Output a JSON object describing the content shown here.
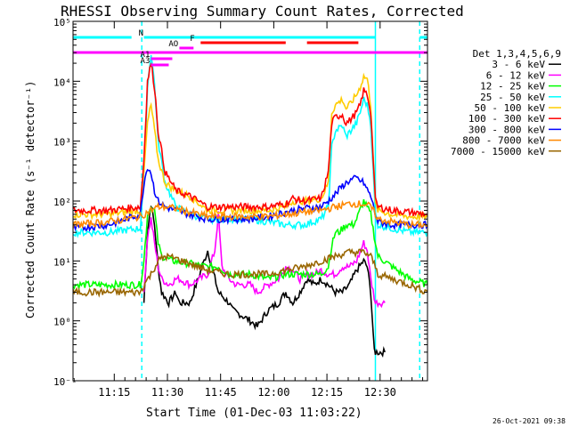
{
  "chart_data": {
    "type": "line",
    "title": "RHESSI Observing Summary Count Rates, Corrected",
    "xlabel": "Start Time (01-Dec-03 11:03:22)",
    "ylabel": "Corrected Count Rate (s⁻¹ detector⁻¹)",
    "yscale": "log",
    "ylim": [
      0.1,
      100000
    ],
    "xlim_minutes": [
      7,
      38.7
    ],
    "ytick_labels": [
      "10⁻¹",
      "10⁰",
      "10¹",
      "10²",
      "10³",
      "10⁴",
      "10⁵"
    ],
    "xtick_labels": [
      "11:15",
      "11:30",
      "11:45",
      "12:00",
      "12:15",
      "12:30"
    ],
    "x_ticks": [
      11.63,
      26.63,
      41.63,
      56.63,
      71.63,
      86.63
    ],
    "timestamp": "26-Oct-2021 09:38",
    "legend_title": "Det 1,3,4,5,6,9",
    "legend_position": "right",
    "vlines": {
      "cyan_dashed": [
        19.4,
        97.8
      ],
      "cyan_solid": [
        85.3
      ]
    },
    "flags": [
      {
        "label": "N",
        "color": "#00ffff",
        "segments": [
          [
            -999,
            16.5
          ],
          [
            20.0,
            85.3
          ],
          [
            97.8,
            999
          ]
        ],
        "y": 42
      },
      {
        "label": "F",
        "color": "#ff0000",
        "segments": [
          [
            36.0,
            60.0
          ],
          [
            66.0,
            80.5
          ]
        ],
        "y": 48
      },
      {
        "label": "AO",
        "color": "#ff00ff",
        "segments": [
          [
            30.0,
            34.0
          ]
        ],
        "y": 54
      },
      {
        "label": "",
        "color": "#ff00ff",
        "segments": [
          [
            -999,
            999
          ]
        ],
        "y": 59
      },
      {
        "label": "A1",
        "color": "#ff00ff",
        "segments": [
          [
            22.0,
            28.0
          ]
        ],
        "y": 66
      },
      {
        "label": "A3",
        "color": "#ff00ff",
        "segments": [
          [
            22.0,
            27.0
          ]
        ],
        "y": 73
      }
    ],
    "series": [
      {
        "name": "3 - 6 keV",
        "color": "#000000",
        "x": [
          0,
          19,
          20,
          21,
          22,
          23,
          24,
          25,
          27,
          29,
          30,
          33,
          38,
          41,
          44,
          45,
          47,
          50,
          52,
          55,
          58,
          60,
          62,
          64,
          66,
          68,
          70,
          72,
          74,
          76,
          78,
          80,
          82,
          83,
          84,
          85,
          85.3,
          86,
          87,
          88
        ],
        "y": [
          null,
          null,
          2,
          30,
          90,
          40,
          8,
          3,
          2,
          3,
          2,
          2,
          15,
          3,
          2,
          1.5,
          1.3,
          1,
          0.8,
          1.5,
          2,
          3,
          2,
          3,
          5,
          4,
          5,
          4,
          3,
          3,
          4,
          7,
          10,
          8,
          3,
          0.3,
          0.3,
          0.3,
          0.3,
          0.3
        ]
      },
      {
        "name": "6 - 12 keV",
        "color": "#ff00ff",
        "x": [
          19,
          20,
          21,
          22,
          23,
          24,
          25,
          27,
          29,
          30,
          33,
          38,
          40,
          41,
          42,
          44,
          46,
          50,
          52,
          55,
          58,
          60,
          62,
          64,
          66,
          68,
          70,
          72,
          74,
          76,
          78,
          80,
          82,
          83,
          84,
          85.3,
          86,
          87,
          88
        ],
        "y": [
          null,
          3,
          25,
          50,
          20,
          8,
          5,
          4,
          5,
          5,
          4,
          6,
          15,
          60,
          8,
          5,
          4,
          4,
          3,
          4,
          5,
          8,
          7,
          5,
          6,
          6,
          7,
          6,
          6,
          8,
          8,
          10,
          20,
          15,
          5,
          2,
          2,
          2,
          2
        ]
      },
      {
        "name": "12 - 25 keV",
        "color": "#00ff00",
        "x": [
          0,
          10,
          19,
          20,
          21,
          22,
          23,
          24,
          25,
          28,
          33,
          38,
          41,
          44,
          50,
          55,
          60,
          65,
          70,
          72,
          73,
          74,
          75,
          77,
          78,
          79,
          80,
          82,
          84,
          85.3,
          86,
          90,
          95,
          100
        ],
        "y": [
          4,
          4,
          4,
          10,
          60,
          80,
          70,
          20,
          12,
          10,
          9,
          8,
          8,
          6,
          6,
          5,
          6,
          6,
          6,
          8,
          18,
          30,
          30,
          40,
          40,
          40,
          50,
          100,
          60,
          20,
          12,
          8,
          5,
          4
        ]
      },
      {
        "name": "25 - 50 keV",
        "color": "#00ffff",
        "x": [
          0,
          10,
          19,
          20,
          21,
          22,
          23,
          24,
          26,
          29,
          33,
          38,
          44,
          50,
          55,
          60,
          62,
          65,
          70,
          72,
          73,
          74,
          76,
          77,
          78,
          80,
          81,
          82,
          83,
          84,
          85.3,
          86,
          90,
          95,
          100
        ],
        "y": [
          30,
          30,
          35,
          300,
          8000,
          30000,
          9000,
          1000,
          200,
          80,
          60,
          50,
          50,
          50,
          45,
          40,
          40,
          40,
          50,
          80,
          800,
          1500,
          1800,
          1200,
          1400,
          2000,
          3000,
          5000,
          4000,
          2000,
          60,
          40,
          35,
          30,
          30
        ]
      },
      {
        "name": "50 - 100 keV",
        "color": "#ffcc00",
        "x": [
          0,
          10,
          19,
          20,
          21,
          22,
          23,
          24,
          26,
          29,
          33,
          38,
          44,
          50,
          55,
          60,
          62,
          65,
          70,
          72,
          73,
          74,
          76,
          77,
          78,
          80,
          81,
          82,
          83,
          84,
          85.3,
          86,
          90,
          95,
          100
        ],
        "y": [
          60,
          60,
          70,
          300,
          2000,
          4000,
          1500,
          500,
          200,
          150,
          120,
          70,
          70,
          70,
          70,
          80,
          100,
          100,
          110,
          200,
          3000,
          4000,
          5000,
          3500,
          4000,
          6000,
          8000,
          12000,
          11000,
          4000,
          90,
          70,
          60,
          55,
          55
        ]
      },
      {
        "name": "100 - 300 keV",
        "color": "#ff0000",
        "x": [
          0,
          10,
          19,
          20,
          21,
          22,
          23,
          24,
          26,
          29,
          33,
          38,
          44,
          50,
          55,
          60,
          62,
          65,
          70,
          72,
          73,
          74,
          76,
          77,
          78,
          80,
          81,
          82,
          83,
          84,
          85.3,
          86,
          90,
          95,
          100
        ],
        "y": [
          70,
          70,
          80,
          500,
          10000,
          20000,
          8000,
          1500,
          300,
          150,
          120,
          80,
          80,
          80,
          80,
          90,
          110,
          100,
          110,
          300,
          2000,
          2500,
          2800,
          2000,
          2200,
          3000,
          4000,
          7000,
          6000,
          3000,
          100,
          80,
          70,
          65,
          60
        ]
      },
      {
        "name": "300 - 800 keV",
        "color": "#0000ff",
        "x": [
          0,
          10,
          19,
          20,
          21,
          22,
          23,
          24,
          26,
          29,
          33,
          38,
          44,
          50,
          55,
          60,
          65,
          70,
          72,
          74,
          76,
          78,
          80,
          82,
          84,
          85.3,
          86,
          90,
          95,
          100
        ],
        "y": [
          35,
          40,
          60,
          200,
          380,
          300,
          150,
          100,
          80,
          70,
          60,
          50,
          50,
          50,
          55,
          65,
          75,
          80,
          100,
          130,
          180,
          220,
          240,
          200,
          120,
          60,
          45,
          40,
          40,
          40
        ]
      },
      {
        "name": "800 - 7000 keV",
        "color": "#ff8800",
        "x": [
          0,
          10,
          19,
          20,
          22,
          24,
          26,
          29,
          33,
          38,
          44,
          50,
          55,
          60,
          65,
          70,
          74,
          78,
          82,
          84,
          85.3,
          86,
          90,
          95,
          100
        ],
        "y": [
          40,
          45,
          55,
          60,
          70,
          80,
          80,
          75,
          65,
          55,
          55,
          55,
          55,
          60,
          65,
          70,
          80,
          90,
          90,
          80,
          60,
          50,
          45,
          40,
          40
        ]
      },
      {
        "name": "7000 - 15000 keV",
        "color": "#996600",
        "x": [
          0,
          10,
          19,
          20,
          22,
          24,
          26,
          29,
          33,
          38,
          44,
          50,
          55,
          60,
          65,
          70,
          74,
          78,
          82,
          84,
          85.3,
          86,
          90,
          95,
          100
        ],
        "y": [
          3,
          3,
          3,
          4,
          6,
          10,
          12,
          11,
          9,
          7,
          6,
          6,
          6,
          7,
          8,
          10,
          12,
          14,
          14,
          12,
          8,
          6,
          5,
          4,
          3
        ]
      }
    ]
  }
}
